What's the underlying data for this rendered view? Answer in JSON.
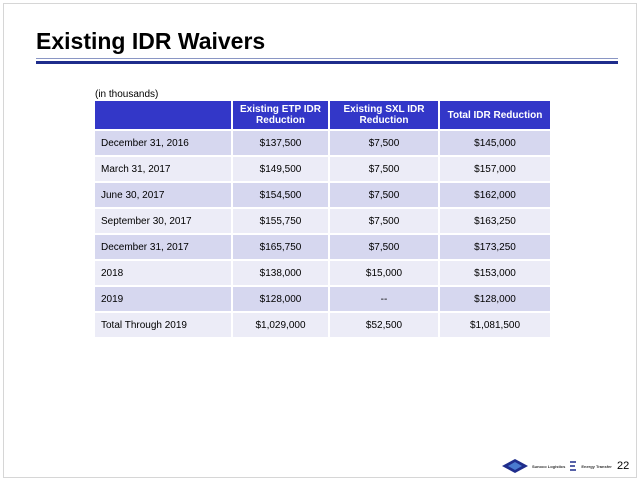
{
  "slide": {
    "title": "Existing IDR Waivers",
    "units_note": "(in thousands)",
    "page_number": "22"
  },
  "table": {
    "headers": [
      "",
      "Existing ETP IDR Reduction",
      "Existing SXL IDR Reduction",
      "Total IDR Reduction"
    ],
    "rows": [
      [
        "December 31, 2016",
        "$137,500",
        "$7,500",
        "$145,000"
      ],
      [
        "March 31, 2017",
        "$149,500",
        "$7,500",
        "$157,000"
      ],
      [
        "June 30, 2017",
        "$154,500",
        "$7,500",
        "$162,000"
      ],
      [
        "September 30, 2017",
        "$155,750",
        "$7,500",
        "$163,250"
      ],
      [
        "December 31, 2017",
        "$165,750",
        "$7,500",
        "$173,250"
      ],
      [
        "2018",
        "$138,000",
        "$15,000",
        "$153,000"
      ],
      [
        "2019",
        "$128,000",
        "--",
        "$128,000"
      ],
      [
        "Total Through 2019",
        "$1,029,000",
        "$52,500",
        "$1,081,500"
      ]
    ]
  },
  "footer": {
    "logo_left_text": "Sunoco Logistics",
    "logo_right_text": "Energy Transfer",
    "logo_left_icon": "sunoco-logistics-logo-icon",
    "logo_right_icon": "energy-transfer-logo-icon"
  },
  "colors": {
    "header_blue": "#3337c8",
    "rule_blue": "#1f2d8c",
    "row_light": "#ececf7",
    "row_dark": "#d6d7ef"
  }
}
